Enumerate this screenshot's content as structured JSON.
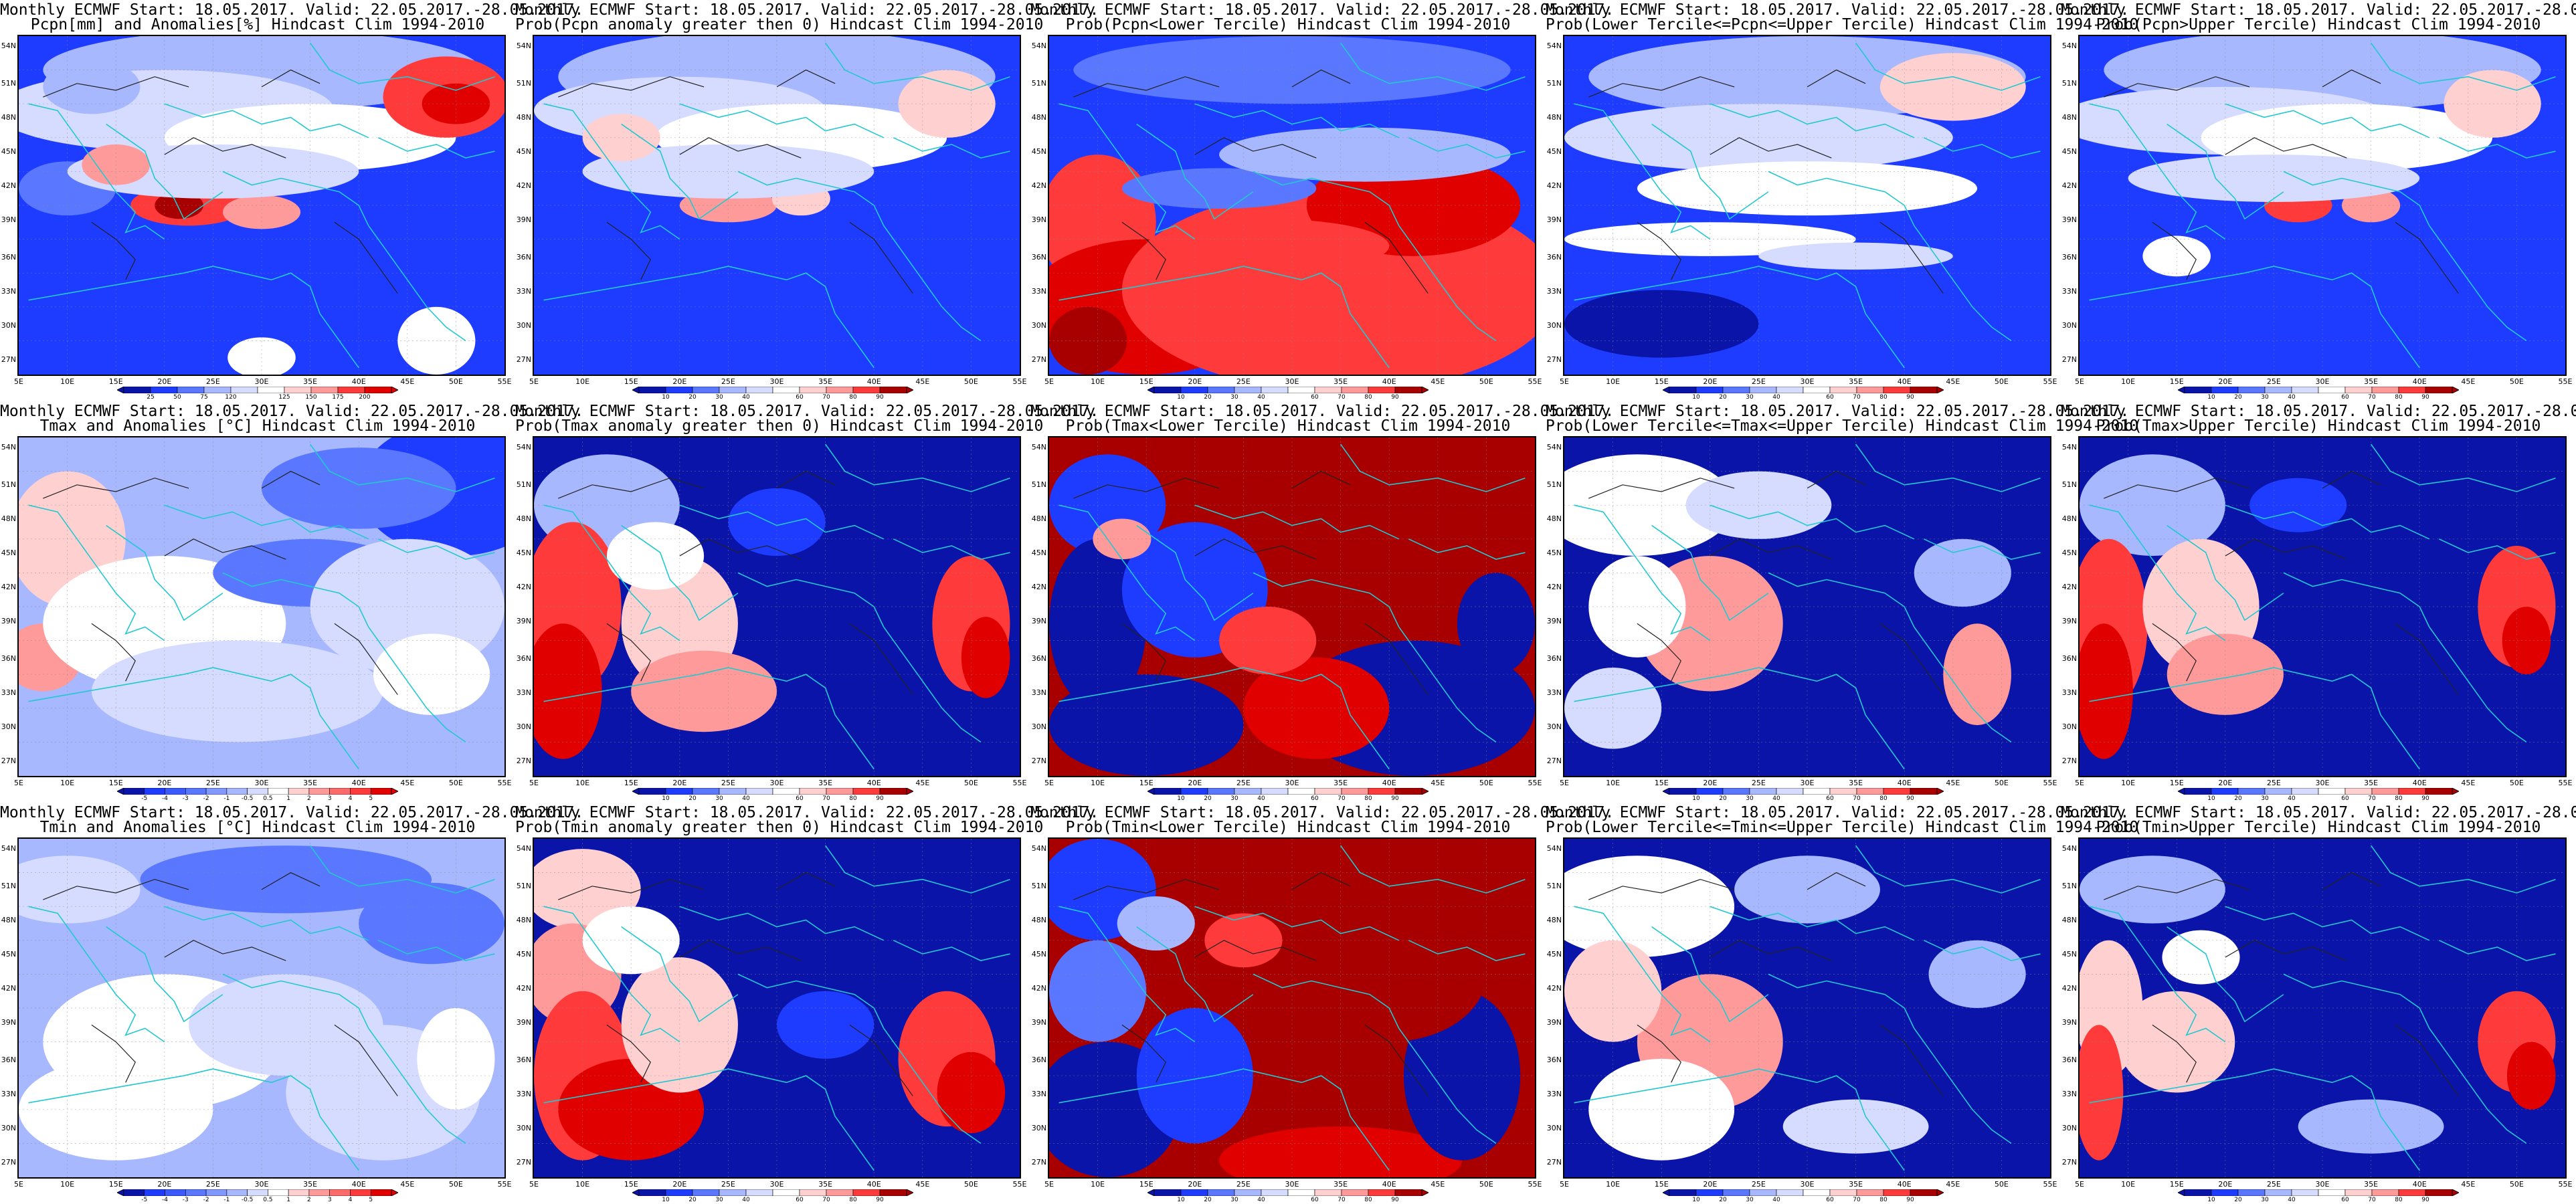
{
  "figure": {
    "title_line1": "Monthly ECMWF Start: 18.05.2017. Valid: 22.05.2017.-28.05.2017.",
    "lat_labels": [
      "54N",
      "51N",
      "48N",
      "45N",
      "42N",
      "39N",
      "36N",
      "33N",
      "30N",
      "27N"
    ],
    "lon_labels": [
      "5E",
      "10E",
      "15E",
      "20E",
      "25E",
      "30E",
      "35E",
      "40E",
      "45E",
      "50E",
      "55E"
    ],
    "colors": {
      "deep_blue": "#0a14a8",
      "blue": "#1e3cff",
      "mid_blue": "#5a78ff",
      "light_blue": "#a8b8ff",
      "pale_blue": "#d6dcff",
      "white": "#ffffff",
      "pale_red": "#ffd0d0",
      "light_red": "#ff9a9a",
      "red": "#ff3a3a",
      "dark_red": "#e00000",
      "deep_red": "#a80000",
      "coast": "#22c8d0"
    },
    "panels": [
      {
        "id": "pcpn-anom",
        "line2": "Pcpn[mm] and Anomalies[%] Hindcast Clim 1994-2010",
        "scale": "pcpn",
        "pattern": "pcpn-anom"
      },
      {
        "id": "pcpn-prob-gt0",
        "line2": "Prob(Pcpn anomaly greater then 0) Hindcast Clim 1994-2010",
        "scale": "prob",
        "pattern": "pcpn-gt0"
      },
      {
        "id": "pcpn-prob-lower",
        "line2": "Prob(Pcpn<Lower Tercile) Hindcast Clim 1994-2010",
        "scale": "prob",
        "pattern": "pcpn-lower"
      },
      {
        "id": "pcpn-prob-middle",
        "line2": "Prob(Lower Tercile<=Pcpn<=Upper Tercile) Hindcast Clim 1994-2010",
        "scale": "prob",
        "pattern": "pcpn-middle"
      },
      {
        "id": "pcpn-prob-upper",
        "line2": "Prob(Pcpn>Upper Tercile) Hindcast Clim 1994-2010",
        "scale": "prob",
        "pattern": "pcpn-upper"
      },
      {
        "id": "tmax-anom",
        "line2": "Tmax and Anomalies [°C] Hindcast Clim 1994-2010",
        "scale": "temp",
        "pattern": "tmax-anom"
      },
      {
        "id": "tmax-prob-gt0",
        "line2": "Prob(Tmax anomaly greater then 0) Hindcast Clim 1994-2010",
        "scale": "prob",
        "pattern": "tmax-gt0"
      },
      {
        "id": "tmax-prob-lower",
        "line2": "Prob(Tmax<Lower Tercile) Hindcast Clim 1994-2010",
        "scale": "prob",
        "pattern": "tmax-lower"
      },
      {
        "id": "tmax-prob-middle",
        "line2": "Prob(Lower Tercile<=Tmax<=Upper Tercile) Hindcast Clim 1994-2010",
        "scale": "prob",
        "pattern": "tmax-middle"
      },
      {
        "id": "tmax-prob-upper",
        "line2": "Prob(Tmax>Upper Tercile) Hindcast Clim 1994-2010",
        "scale": "prob",
        "pattern": "tmax-upper"
      },
      {
        "id": "tmin-anom",
        "line2": "Tmin and Anomalies [°C] Hindcast Clim 1994-2010",
        "scale": "temp",
        "pattern": "tmin-anom"
      },
      {
        "id": "tmin-prob-gt0",
        "line2": "Prob(Tmin anomaly greater then 0) Hindcast Clim 1994-2010",
        "scale": "prob",
        "pattern": "tmin-gt0"
      },
      {
        "id": "tmin-prob-lower",
        "line2": "Prob(Tmin<Lower Tercile) Hindcast Clim 1994-2010",
        "scale": "prob",
        "pattern": "tmin-lower"
      },
      {
        "id": "tmin-prob-middle",
        "line2": "Prob(Lower Tercile<=Tmin<=Upper Tercile) Hindcast Clim 1994-2010",
        "scale": "prob",
        "pattern": "tmin-middle"
      },
      {
        "id": "tmin-prob-upper",
        "line2": "Prob(Tmin>Upper Tercile) Hindcast Clim 1994-2010",
        "scale": "prob",
        "pattern": "tmin-upper"
      }
    ],
    "colorbars": {
      "pcpn": {
        "ticks": [
          "25",
          "50",
          "75",
          "120",
          "125",
          "150",
          "175",
          "200"
        ],
        "colors": [
          "#0a14a8",
          "#1e3cff",
          "#5a78ff",
          "#a8b8ff",
          "#d6dcff",
          "#ffffff",
          "#ffd0d0",
          "#ff9a9a",
          "#ff3a3a",
          "#e00000"
        ]
      },
      "prob": {
        "ticks": [
          "10",
          "20",
          "30",
          "40",
          "60",
          "70",
          "80",
          "90"
        ],
        "colors": [
          "#0a14a8",
          "#1e3cff",
          "#5a78ff",
          "#a8b8ff",
          "#d6dcff",
          "#ffffff",
          "#ffd0d0",
          "#ff9a9a",
          "#ff3a3a",
          "#a80000"
        ]
      },
      "temp": {
        "ticks": [
          "-5",
          "-4",
          "-3",
          "-2",
          "-1",
          "-0.5",
          "0.5",
          "1",
          "2",
          "3",
          "4",
          "5"
        ],
        "colors": [
          "#0a14a8",
          "#1e3cff",
          "#3a5aff",
          "#5a78ff",
          "#8098ff",
          "#a8b8ff",
          "#d6dcff",
          "#ffffff",
          "#ffd0d0",
          "#ff9a9a",
          "#ff6a6a",
          "#ff3a3a",
          "#e00000"
        ]
      }
    }
  }
}
